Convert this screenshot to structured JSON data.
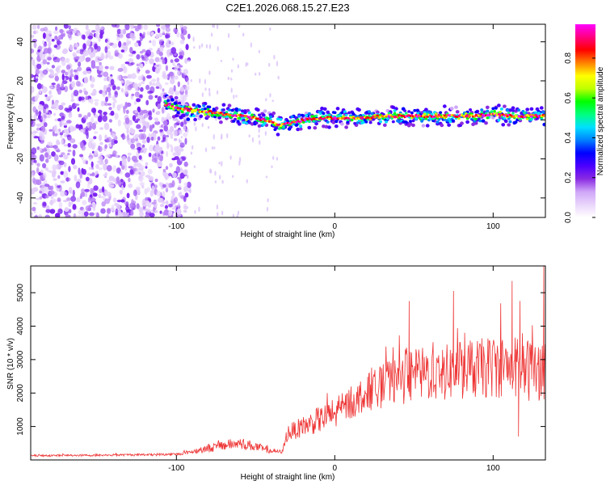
{
  "title": "C2E1.2026.068.15.27.E23",
  "chart_data": [
    {
      "type": "heatmap",
      "title": "C2E1.2026.068.15.27.E23",
      "xlabel": "Height of straight line (km)",
      "ylabel": "Frequency (Hz)",
      "xlim": [
        -192,
        133
      ],
      "ylim": [
        -50,
        49
      ],
      "xticks": [
        -100,
        0,
        100
      ],
      "yticks": [
        -40,
        -20,
        0,
        20,
        40
      ],
      "grid": false,
      "colorbar": {
        "label": "Normalized spectral amplitude",
        "range": [
          0,
          0.97
        ],
        "ticks": [
          "0.0",
          "0.2",
          "0.4",
          "0.6",
          "0.8"
        ],
        "colormap": [
          "#ffffff",
          "#e9d5fb",
          "#cfa6f8",
          "#8a2be2",
          "#4b00ff",
          "#0000ff",
          "#0080ff",
          "#00e0ff",
          "#00ff80",
          "#00ff00",
          "#c0ff00",
          "#ffff00",
          "#ff8000",
          "#ff0000",
          "#ff007f",
          "#ff00ff"
        ]
      },
      "ridge": {
        "description": "dominant frequency trace",
        "x_km": [
          -107,
          -100,
          -90,
          -80,
          -70,
          -60,
          -50,
          -40,
          -35,
          -30,
          -20,
          -10,
          0,
          10,
          20,
          30,
          40,
          50,
          60,
          70,
          80,
          90,
          100,
          110,
          120,
          133
        ],
        "freq_hz": [
          8,
          6,
          5,
          4,
          3,
          2,
          1,
          -1,
          -3,
          -2,
          0,
          1,
          1,
          1,
          1,
          2,
          2,
          2,
          2,
          2,
          2,
          2,
          3,
          2,
          2,
          2
        ]
      },
      "noise_region": {
        "x_km": [
          -192,
          -100
        ],
        "freq_hz": [
          -50,
          49
        ],
        "level": "low (0.0-0.3)"
      }
    },
    {
      "type": "line",
      "xlabel": "Height of straight line (km)",
      "ylabel": "SNR (10 * v/v)",
      "xlim": [
        -192,
        133
      ],
      "ylim": [
        0,
        5800
      ],
      "xticks": [
        -100,
        0,
        100
      ],
      "yticks": [
        1000,
        2000,
        3000,
        4000,
        5000
      ],
      "grid": false,
      "series": [
        {
          "name": "SNR",
          "color": "#ee3333",
          "envelope": {
            "x_km": [
              -192,
              -150,
              -100,
              -90,
              -80,
              -70,
              -60,
              -50,
              -40,
              -33,
              -30,
              -20,
              -10,
              0,
              10,
              20,
              30,
              40,
              50,
              60,
              70,
              80,
              90,
              100,
              110,
              120,
              130
            ],
            "center": [
              130,
              140,
              170,
              250,
              350,
              430,
              500,
              400,
              250,
              250,
              800,
              1000,
              1200,
              1350,
              1700,
              2000,
              2200,
              2400,
              2500,
              2600,
              2600,
              2700,
              2700,
              2800,
              2800,
              2700,
              2700
            ],
            "spread": [
              30,
              30,
              40,
              70,
              130,
              150,
              180,
              150,
              60,
              50,
              250,
              300,
              400,
              450,
              500,
              550,
              650,
              750,
              800,
              850,
              850,
              900,
              900,
              950,
              950,
              950,
              950
            ]
          },
          "peaks": [
            {
              "x_km": 47,
              "value": 4750
            },
            {
              "x_km": 75,
              "value": 5050
            },
            {
              "x_km": 112,
              "value": 5350
            },
            {
              "x_km": 117,
              "value": 4750
            },
            {
              "x_km": 132,
              "value": 5800
            },
            {
              "x_km": 116,
              "value": 700
            }
          ]
        }
      ]
    }
  ]
}
